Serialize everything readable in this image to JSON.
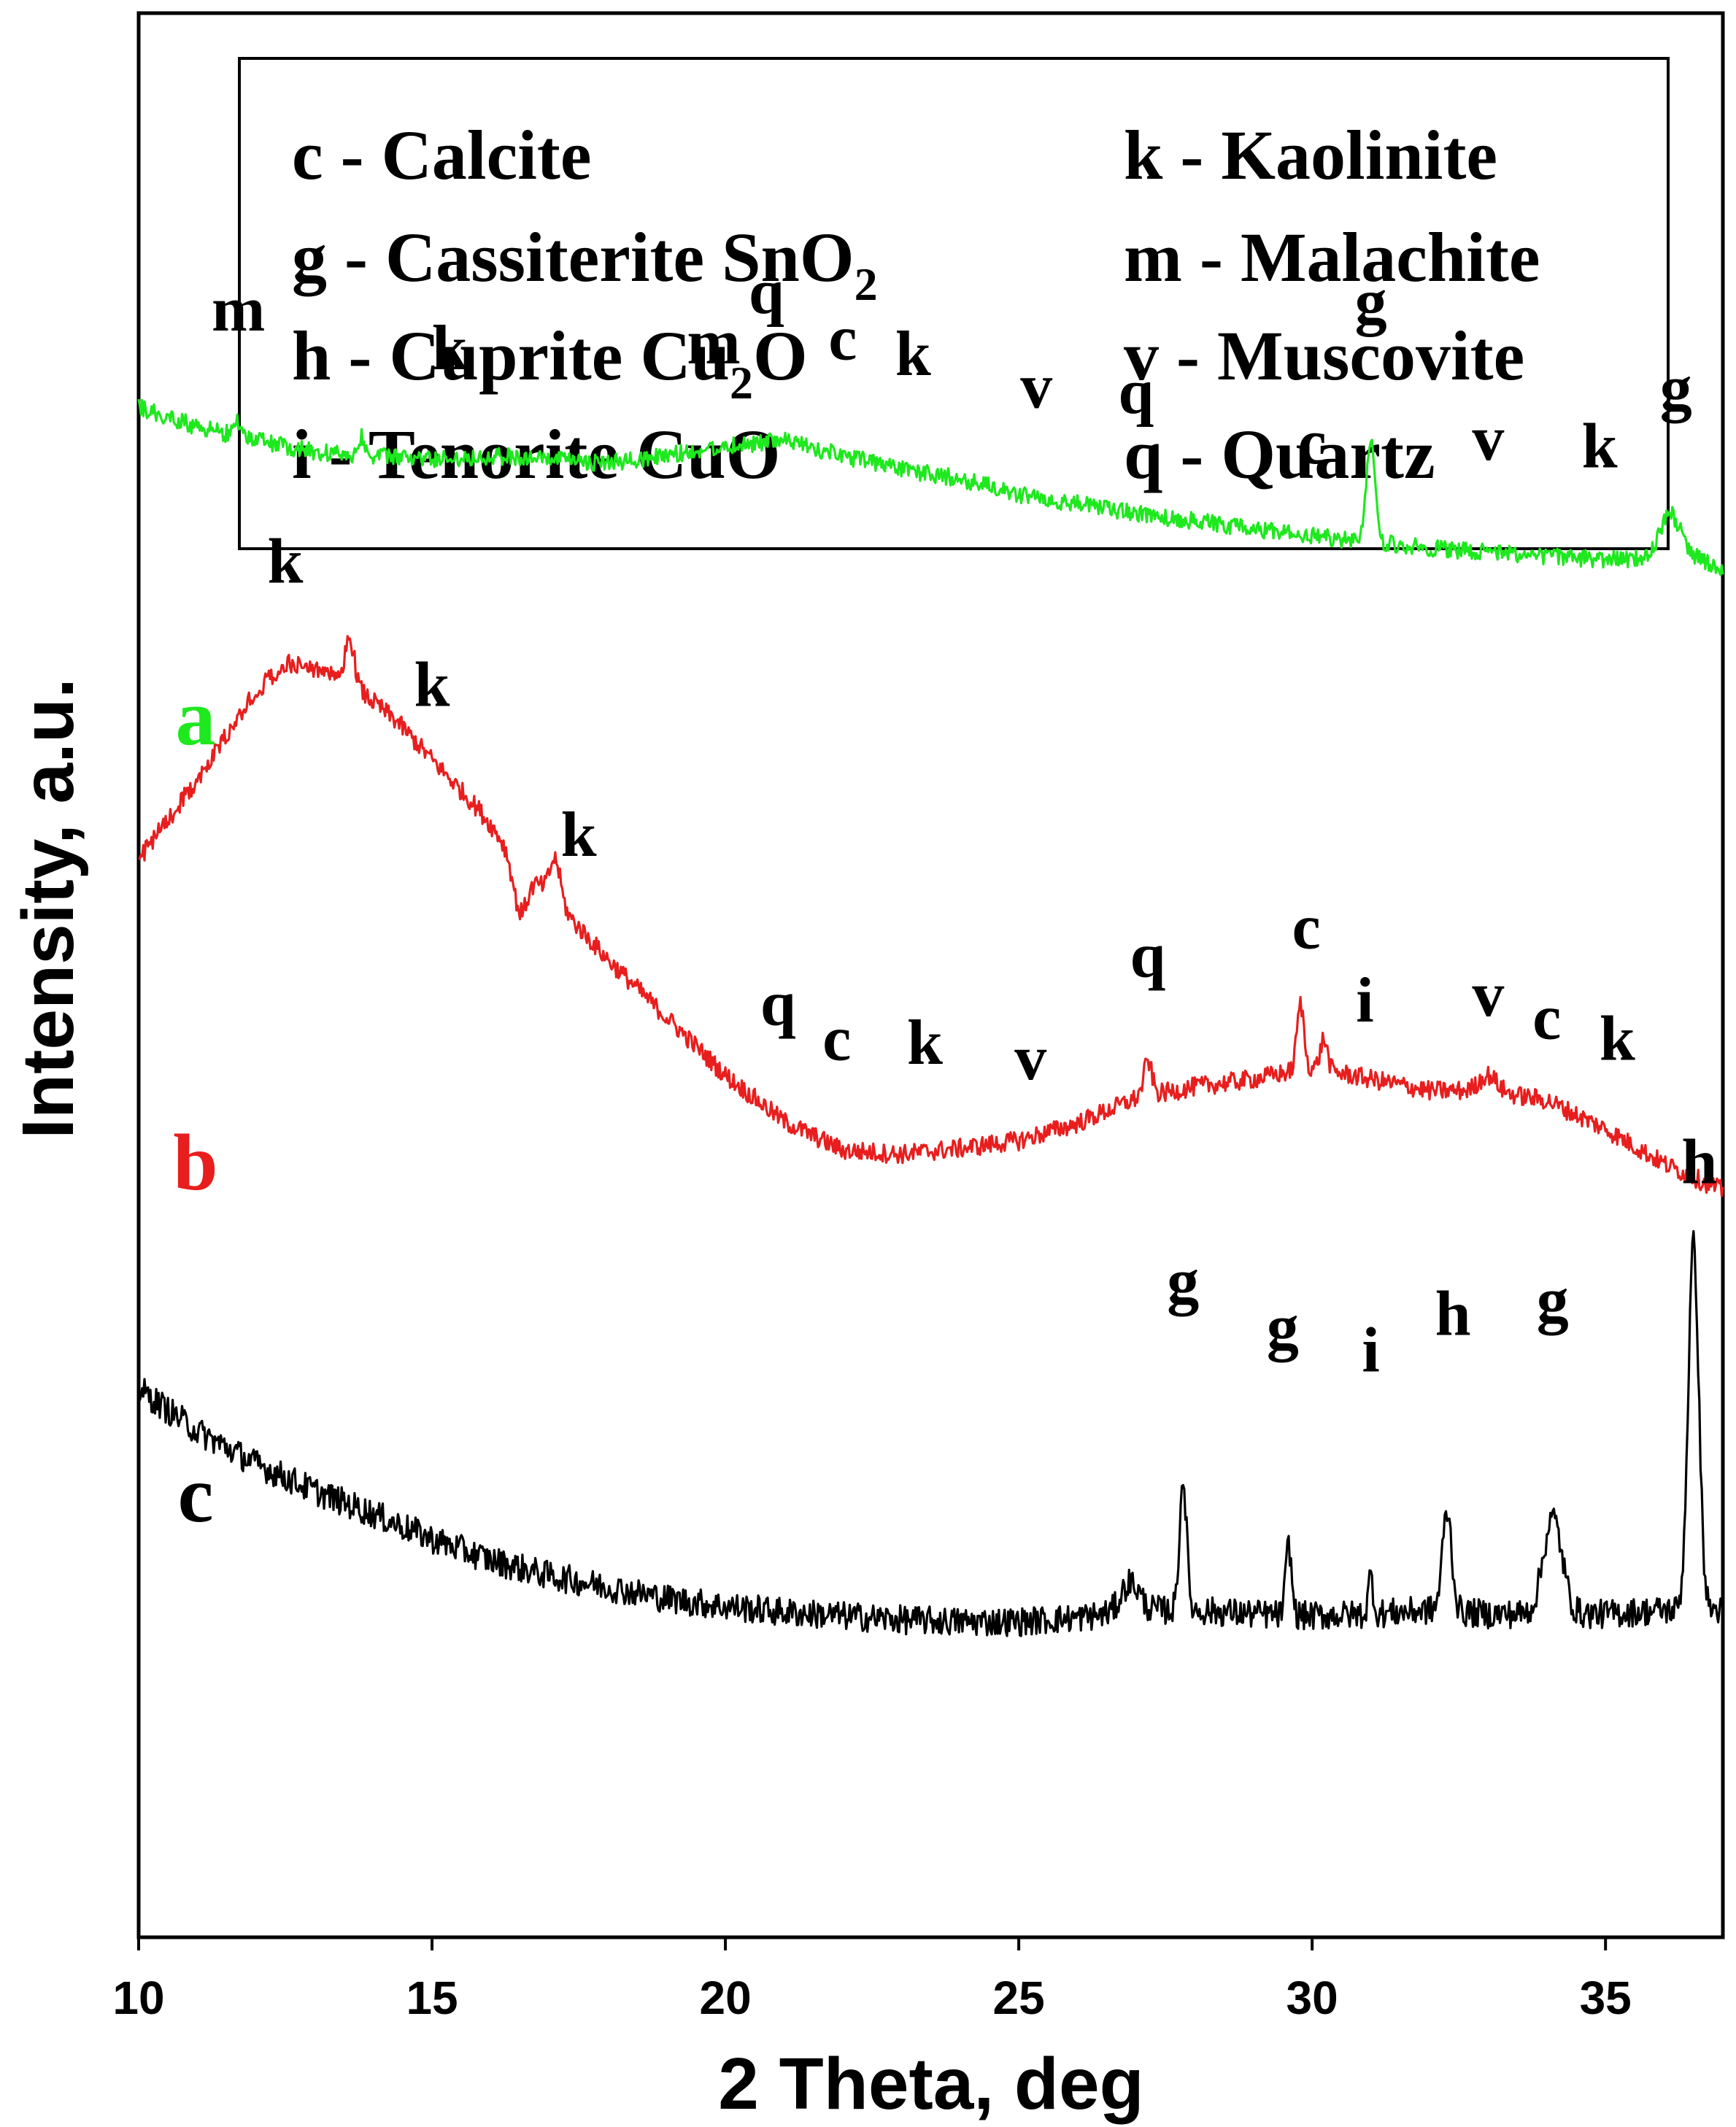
{
  "chart_data": {
    "type": "line",
    "title": "",
    "xlabel": "2 Theta, deg",
    "ylabel": "Intensity, a.u.",
    "xlim": [
      10,
      37
    ],
    "ylim": [
      0,
      100
    ],
    "x_ticks": [
      "10",
      "15",
      "20",
      "25",
      "30",
      "35"
    ],
    "legend": [
      {
        "code": "c",
        "sep": " - ",
        "name": "Calcite",
        "sub": "",
        "tail": ""
      },
      {
        "code": "g",
        "sep": " - ",
        "name": "Cassiterite SnO",
        "sub": "2",
        "tail": ""
      },
      {
        "code": "h",
        "sep": " - ",
        "name": "Cuprite Cu",
        "sub": "2",
        "tail": "O"
      },
      {
        "code": "i",
        "sep": " - ",
        "name": "Tenorite CuO",
        "sub": "",
        "tail": ""
      },
      {
        "code": "k",
        "sep": " - ",
        "name": "Kaolinite",
        "sub": "",
        "tail": ""
      },
      {
        "code": "m",
        "sep": " - ",
        "name": "Malachite",
        "sub": "",
        "tail": ""
      },
      {
        "code": "v",
        "sep": " - ",
        "name": "Muscovite",
        "sub": "",
        "tail": ""
      },
      {
        "code": "q",
        "sep": " - ",
        "name": "Quartz",
        "sub": "",
        "tail": ""
      }
    ],
    "series": [
      {
        "name": "a",
        "color": "#1ee81e",
        "baseline_x": [
          10,
          11,
          12,
          13,
          14,
          15,
          16,
          17,
          18,
          19,
          20,
          21,
          22,
          23,
          24,
          25,
          26,
          27,
          28,
          29,
          30,
          30.8,
          31.4,
          32,
          33,
          34,
          35,
          35.8,
          36.5,
          37
        ],
        "baseline_y": [
          79.5,
          78.5,
          77.8,
          77.2,
          77.0,
          76.8,
          77.0,
          76.8,
          76.6,
          77.0,
          77.5,
          77.8,
          77.0,
          76.3,
          75.8,
          75.0,
          74.5,
          74.0,
          73.6,
          73.2,
          72.8,
          72.6,
          72.4,
          72.2,
          72.0,
          71.8,
          71.6,
          71.6,
          71.7,
          71.2
        ],
        "peaks": [
          [
            31.0,
            5.5,
            0.07
          ],
          [
            36.1,
            2.3,
            0.18
          ],
          [
            13.8,
            1.0,
            0.05
          ],
          [
            11.7,
            0.8,
            0.05
          ]
        ],
        "noise": 0.45,
        "labels": [
          {
            "text": "m",
            "x": 11.7,
            "y": 83.5
          },
          {
            "text": "k",
            "x": 15.3,
            "y": 81.5
          },
          {
            "text": "m",
            "x": 19.8,
            "y": 81.8
          },
          {
            "text": "q",
            "x": 20.7,
            "y": 84.4
          },
          {
            "text": "c",
            "x": 22.0,
            "y": 82.0
          },
          {
            "text": "k",
            "x": 23.2,
            "y": 81.2
          },
          {
            "text": "v",
            "x": 25.3,
            "y": 79.5
          },
          {
            "text": "q",
            "x": 27.0,
            "y": 79.2
          },
          {
            "text": "c",
            "x": 30.0,
            "y": 76.6
          },
          {
            "text": "g",
            "x": 31.0,
            "y": 83.9
          },
          {
            "text": "v",
            "x": 33.0,
            "y": 76.8
          },
          {
            "text": "k",
            "x": 34.9,
            "y": 76.4
          },
          {
            "text": "g",
            "x": 36.2,
            "y": 79.4
          }
        ]
      },
      {
        "name": "b",
        "color": "#e81e1e",
        "baseline_x": [
          10,
          10.6,
          11.3,
          12.0,
          12.5,
          13.2,
          13.8,
          14.4,
          15.0,
          15.8,
          16.5,
          17.2,
          18.0,
          19.0,
          20.0,
          21.0,
          22.0,
          23.0,
          24.0,
          25.0,
          26.0,
          27.0,
          28.0,
          29.0,
          30.0,
          31.0,
          32.0,
          33.0,
          34.0,
          35.0,
          36.0,
          37.0
        ],
        "baseline_y": [
          56.0,
          58.5,
          61.5,
          64.8,
          66.2,
          65.8,
          64.7,
          63.2,
          61.2,
          58.6,
          55.8,
          53.5,
          50.8,
          47.8,
          44.8,
          42.4,
          40.9,
          40.7,
          41.0,
          41.4,
          42.3,
          43.6,
          44.2,
          44.6,
          45.2,
          44.6,
          44.0,
          44.0,
          43.5,
          42.0,
          40.2,
          38.8
        ],
        "peaks": [
          [
            13.6,
            2.4,
            0.08
          ],
          [
            16.5,
            -2.5,
            0.12
          ],
          [
            17.1,
            2.2,
            0.09
          ],
          [
            27.2,
            1.8,
            0.07
          ],
          [
            29.8,
            3.4,
            0.06
          ],
          [
            30.2,
            1.6,
            0.06
          ],
          [
            33.0,
            0.8,
            0.15
          ]
        ],
        "noise": 0.5,
        "labels": [
          {
            "text": "k",
            "x": 12.5,
            "y": 70.4
          },
          {
            "text": "k",
            "x": 15.0,
            "y": 64.0
          },
          {
            "text": "k",
            "x": 17.5,
            "y": 56.2
          },
          {
            "text": "q",
            "x": 20.9,
            "y": 47.4
          },
          {
            "text": "c",
            "x": 21.9,
            "y": 45.6
          },
          {
            "text": "k",
            "x": 23.4,
            "y": 45.4
          },
          {
            "text": "v",
            "x": 25.2,
            "y": 44.6
          },
          {
            "text": "q",
            "x": 27.2,
            "y": 49.9
          },
          {
            "text": "c",
            "x": 29.9,
            "y": 51.4
          },
          {
            "text": "i",
            "x": 30.9,
            "y": 47.6
          },
          {
            "text": "v",
            "x": 33.0,
            "y": 47.9
          },
          {
            "text": "c",
            "x": 34.0,
            "y": 46.7
          },
          {
            "text": "k",
            "x": 35.2,
            "y": 45.6
          }
        ]
      },
      {
        "name": "c",
        "color": "#000000",
        "baseline_x": [
          10,
          11,
          12,
          13,
          14,
          15,
          16,
          17,
          18,
          19,
          20,
          21,
          22,
          23,
          24,
          25,
          26,
          27,
          28,
          29,
          30,
          31,
          32,
          33,
          34,
          35,
          36,
          36.5,
          37
        ],
        "baseline_y": [
          28.5,
          26.3,
          24.6,
          23.2,
          22.0,
          20.7,
          19.6,
          18.8,
          18.2,
          17.6,
          17.2,
          16.9,
          16.7,
          16.5,
          16.4,
          16.4,
          16.6,
          17.0,
          17.0,
          16.8,
          16.7,
          16.8,
          17.0,
          16.8,
          16.8,
          16.8,
          17.0,
          17.0,
          17.0
        ],
        "peaks": [
          [
            27.8,
            6.8,
            0.06
          ],
          [
            29.6,
            3.6,
            0.05
          ],
          [
            31.0,
            2.0,
            0.04
          ],
          [
            32.3,
            5.2,
            0.08
          ],
          [
            34.1,
            5.0,
            0.16
          ],
          [
            36.5,
            19.0,
            0.09
          ],
          [
            26.9,
            1.5,
            0.15
          ]
        ],
        "noise": 0.75,
        "labels": [
          {
            "text": "g",
            "x": 27.8,
            "y": 33.0
          },
          {
            "text": "g",
            "x": 29.5,
            "y": 30.6
          },
          {
            "text": "i",
            "x": 31.0,
            "y": 29.4
          },
          {
            "text": "h",
            "x": 32.4,
            "y": 31.3
          },
          {
            "text": "g",
            "x": 34.1,
            "y": 32.0
          },
          {
            "text": "h",
            "x": 36.6,
            "y": 39.2
          }
        ]
      }
    ]
  }
}
